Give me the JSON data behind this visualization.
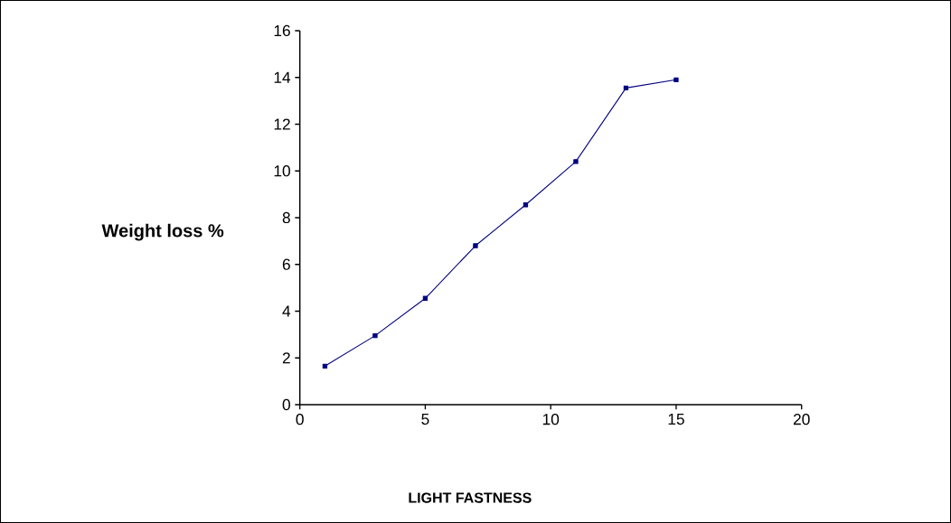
{
  "chart_data": {
    "type": "line",
    "xlabel": "LIGHT FASTNESS",
    "ylabel": "Weight loss %",
    "x": [
      1,
      3,
      5,
      7,
      9,
      11,
      13,
      15
    ],
    "series": [
      {
        "color": "#000080",
        "values": [
          1.65,
          2.95,
          4.55,
          6.8,
          8.55,
          10.4,
          13.55,
          13.9
        ]
      }
    ],
    "xlim": [
      0,
      20
    ],
    "xticks": [
      0,
      5,
      10,
      15,
      20
    ],
    "ylim": [
      0,
      16
    ],
    "yticks": [
      0,
      2,
      4,
      6,
      8,
      10,
      12,
      14,
      16
    ],
    "grid": false,
    "marker": "square",
    "line_style": "solid"
  }
}
